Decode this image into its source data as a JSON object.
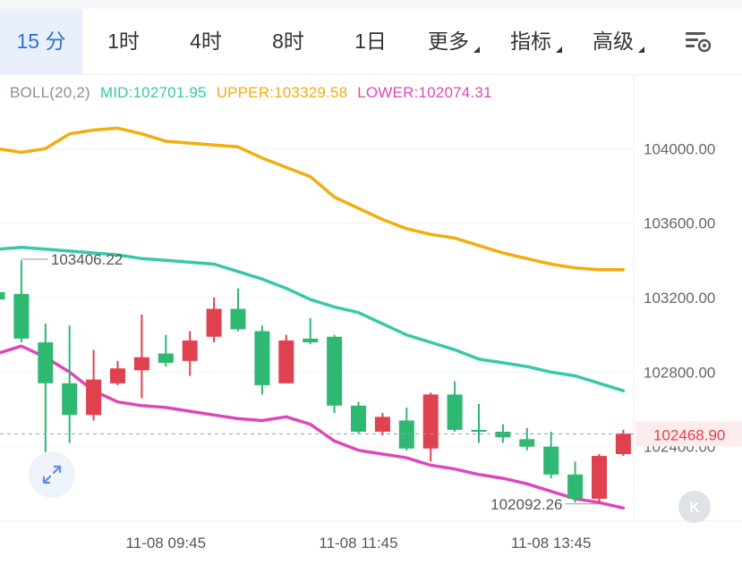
{
  "tabs": [
    {
      "label": "15 分",
      "active": true
    },
    {
      "label": "1时",
      "active": false
    },
    {
      "label": "4时",
      "active": false
    },
    {
      "label": "8时",
      "active": false
    },
    {
      "label": "1日",
      "active": false
    },
    {
      "label": "更多",
      "active": false,
      "dropdown": true
    },
    {
      "label": "指标",
      "active": false,
      "dropdown": true
    },
    {
      "label": "高级",
      "active": false,
      "dropdown": true
    }
  ],
  "icons": {
    "settings": "chart-settings-icon",
    "expand": "expand-diagonal-icon",
    "k_button": "k-letter-icon"
  },
  "indicator": {
    "name": "BOLL(20,2)",
    "mid": "MID:102701.95",
    "upper": "UPPER:103329.58",
    "lower": "LOWER:102074.31"
  },
  "k_label": "K",
  "colors": {
    "up": "#e0414f",
    "down": "#2eb872",
    "mid": "#38c8a8",
    "upper": "#f2ad0f",
    "lower": "#dd48b8",
    "accent": "#2f6fd6",
    "current_price_bg": "#fdeced"
  },
  "chart_data": {
    "type": "candlestick",
    "y_ticks": [
      "104000.00",
      "103600.00",
      "103200.00",
      "102800.00",
      "102400.00"
    ],
    "ylim": [
      102000,
      104400
    ],
    "current_price": "102468.90",
    "x_ticks": [
      "11-08 09:45",
      "11-08 11:45",
      "11-08 13:45"
    ],
    "annotations": {
      "high": "103406.22",
      "low": "102092.26"
    },
    "candles": [
      {
        "o": 103230,
        "c": 103190,
        "h": 103250,
        "l": 103180
      },
      {
        "o": 103220,
        "c": 102980,
        "h": 103400,
        "l": 102960
      },
      {
        "o": 102960,
        "c": 102740,
        "h": 103060,
        "l": 102370
      },
      {
        "o": 102740,
        "c": 102570,
        "h": 103050,
        "l": 102420
      },
      {
        "o": 102570,
        "c": 102760,
        "h": 102920,
        "l": 102540
      },
      {
        "o": 102740,
        "c": 102820,
        "h": 102860,
        "l": 102730
      },
      {
        "o": 102810,
        "c": 102880,
        "h": 103110,
        "l": 102660
      },
      {
        "o": 102900,
        "c": 102850,
        "h": 103000,
        "l": 102830
      },
      {
        "o": 102860,
        "c": 102970,
        "h": 103020,
        "l": 102780
      },
      {
        "o": 102990,
        "c": 103140,
        "h": 103200,
        "l": 102960
      },
      {
        "o": 103140,
        "c": 103030,
        "h": 103250,
        "l": 103020
      },
      {
        "o": 103020,
        "c": 102730,
        "h": 103050,
        "l": 102680
      },
      {
        "o": 102740,
        "c": 102970,
        "h": 103000,
        "l": 102740
      },
      {
        "o": 102980,
        "c": 102960,
        "h": 103090,
        "l": 102950
      },
      {
        "o": 102990,
        "c": 102620,
        "h": 103000,
        "l": 102580
      },
      {
        "o": 102620,
        "c": 102480,
        "h": 102640,
        "l": 102470
      },
      {
        "o": 102480,
        "c": 102560,
        "h": 102580,
        "l": 102460
      },
      {
        "o": 102540,
        "c": 102390,
        "h": 102610,
        "l": 102380
      },
      {
        "o": 102390,
        "c": 102680,
        "h": 102690,
        "l": 102320
      },
      {
        "o": 102680,
        "c": 102490,
        "h": 102750,
        "l": 102480
      },
      {
        "o": 102490,
        "c": 102480,
        "h": 102630,
        "l": 102420
      },
      {
        "o": 102480,
        "c": 102450,
        "h": 102520,
        "l": 102420
      },
      {
        "o": 102440,
        "c": 102400,
        "h": 102500,
        "l": 102380
      },
      {
        "o": 102400,
        "c": 102250,
        "h": 102480,
        "l": 102230
      },
      {
        "o": 102250,
        "c": 102120,
        "h": 102320,
        "l": 102100
      },
      {
        "o": 102120,
        "c": 102350,
        "h": 102360,
        "l": 102092
      },
      {
        "o": 102360,
        "c": 102470,
        "h": 102490,
        "l": 102350
      }
    ],
    "series": [
      {
        "name": "UPPER",
        "values": [
          104000,
          103980,
          104000,
          104080,
          104100,
          104110,
          104080,
          104040,
          104030,
          104020,
          104010,
          103950,
          103900,
          103850,
          103740,
          103680,
          103620,
          103570,
          103540,
          103520,
          103480,
          103440,
          103410,
          103380,
          103360,
          103350,
          103350
        ]
      },
      {
        "name": "MID",
        "values": [
          103460,
          103470,
          103460,
          103450,
          103440,
          103430,
          103410,
          103400,
          103390,
          103380,
          103340,
          103300,
          103250,
          103190,
          103150,
          103120,
          103060,
          103000,
          102960,
          102920,
          102870,
          102850,
          102830,
          102800,
          102780,
          102740,
          102700
        ]
      },
      {
        "name": "LOWER",
        "values": [
          102900,
          102940,
          102880,
          102800,
          102700,
          102640,
          102620,
          102610,
          102590,
          102570,
          102550,
          102540,
          102560,
          102520,
          102430,
          102380,
          102360,
          102340,
          102300,
          102280,
          102250,
          102230,
          102200,
          102160,
          102120,
          102100,
          102070
        ]
      }
    ]
  }
}
